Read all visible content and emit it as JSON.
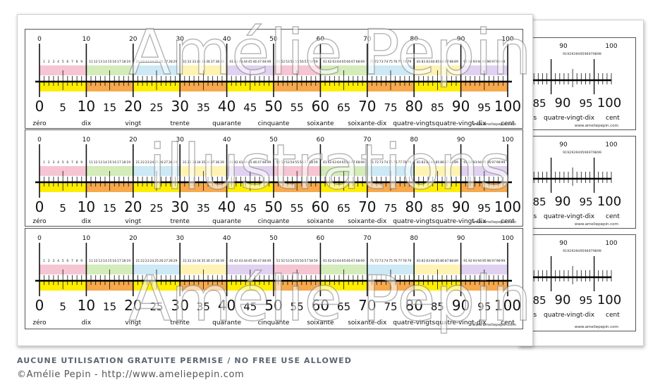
{
  "ruler": {
    "max": 100,
    "tens": [
      "0",
      "10",
      "20",
      "30",
      "40",
      "50",
      "60",
      "70",
      "80",
      "90",
      "100"
    ],
    "fives": [
      "0",
      "5",
      "10",
      "15",
      "20",
      "25",
      "30",
      "35",
      "40",
      "45",
      "50",
      "55",
      "60",
      "65",
      "70",
      "75",
      "80",
      "85",
      "90",
      "95",
      "100"
    ],
    "words": [
      "zéro",
      "dix",
      "vingt",
      "trente",
      "quarante",
      "cinquante",
      "soixante",
      "soixante-dix",
      "quatre-vingts",
      "quatre-vingt-dix",
      "cent"
    ],
    "website": "www.ameliepepin.com",
    "band_colors": [
      "#f4b6c8",
      "#c9e6a9",
      "#bfe3f2",
      "#fff0a0",
      "#d8c6ec"
    ],
    "yellow": "#ffee00",
    "orange": "#f7a94b"
  },
  "back_ruler": {
    "top_labels": [
      "91",
      "92",
      "93",
      "94",
      "95",
      "96",
      "97",
      "98",
      "99"
    ],
    "big_numbers": [
      "90",
      "85",
      "90",
      "95",
      "100"
    ],
    "words": [
      "ingts",
      "quatre-vingt-dix",
      "cent"
    ]
  },
  "watermark": {
    "lines": [
      "Amélie Pepin",
      "illustrations",
      "Amélie Pepin"
    ]
  },
  "footer": {
    "notice": "AUCUNE UTILISATION GRATUITE PERMISE / NO FREE USE ALLOWED",
    "copyright": "©Amélie Pepin - http://www.ameliepepin.com"
  }
}
